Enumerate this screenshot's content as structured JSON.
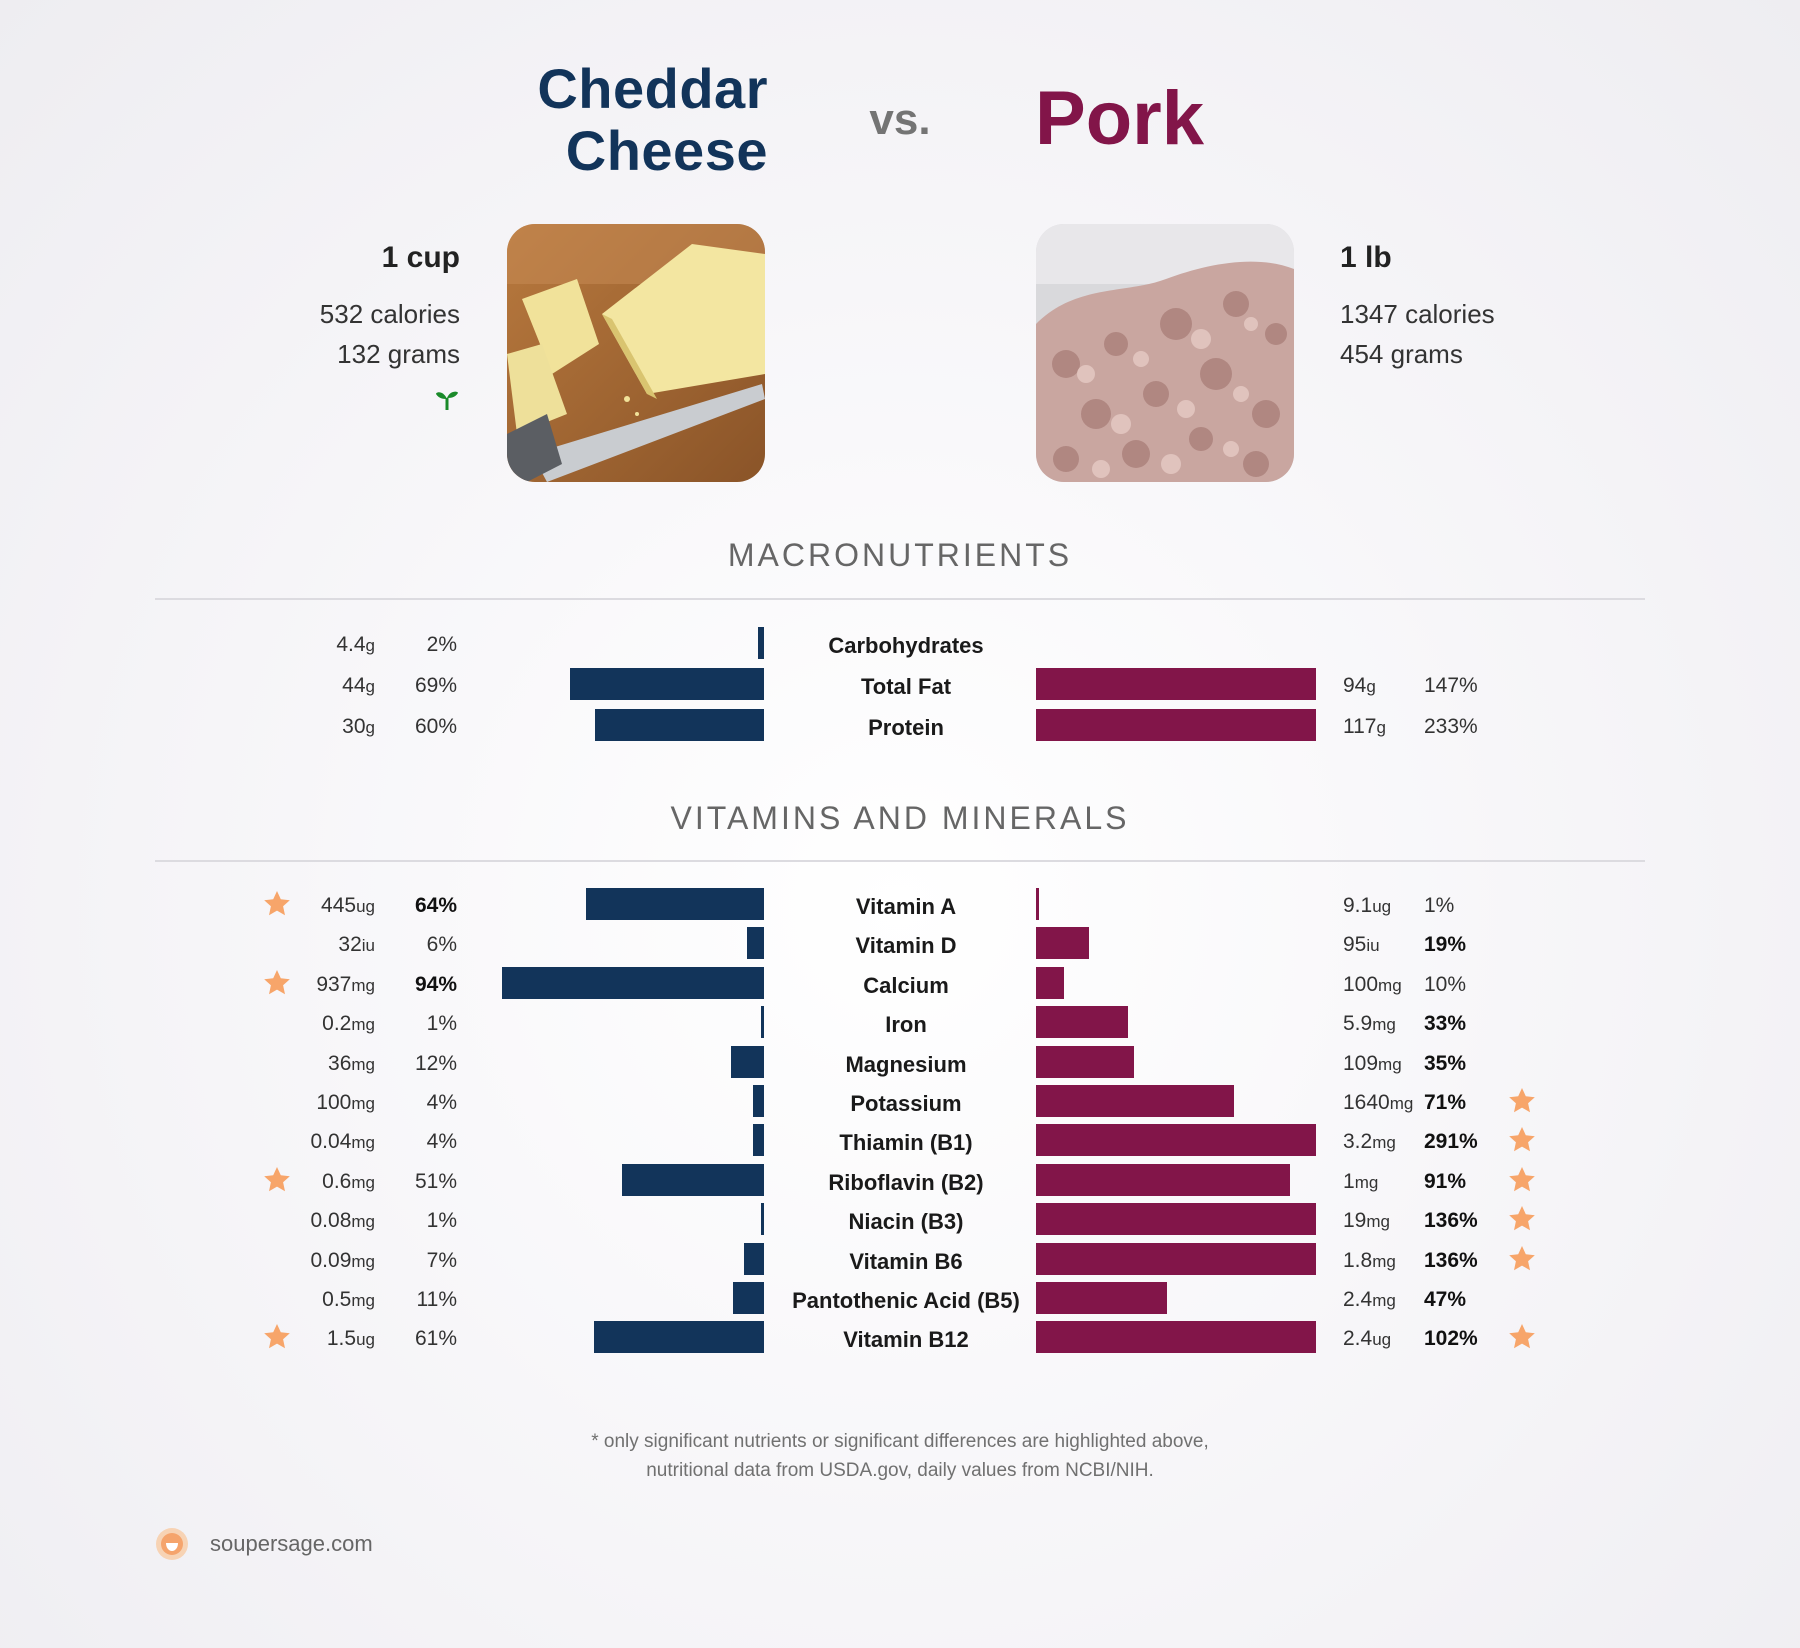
{
  "header": {
    "left_title_line1": "Cheddar",
    "left_title_line2": "Cheese",
    "vs": "vs.",
    "right_title": "Pork"
  },
  "left_food": {
    "serving": "1 cup",
    "calories": "532 calories",
    "grams": "132 grams",
    "badge_icon": "sprout-icon"
  },
  "right_food": {
    "serving": "1 lb",
    "calories": "1347 calories",
    "grams": "454 grams"
  },
  "sections": {
    "macros": "MACRONUTRIENTS",
    "vitamins": "VITAMINS AND MINERALS"
  },
  "colors": {
    "left": "#12345a",
    "right": "#821549",
    "star": "#f7a56a"
  },
  "chart_data": [
    {
      "type": "bar",
      "title": "MACRONUTRIENTS",
      "series": [
        {
          "name": "Cheddar Cheese"
        },
        {
          "name": "Pork"
        }
      ],
      "rows": [
        {
          "name": "Carbohydrates",
          "left_val": "4.4",
          "left_unit": "g",
          "left_pct": "2%",
          "left_pct_num": 2,
          "right_val": "",
          "right_unit": "",
          "right_pct": "",
          "right_pct_num": 0
        },
        {
          "name": "Total Fat",
          "left_val": "44",
          "left_unit": "g",
          "left_pct": "69%",
          "left_pct_num": 69,
          "right_val": "94",
          "right_unit": "g",
          "right_pct": "147%",
          "right_pct_num": 147
        },
        {
          "name": "Protein",
          "left_val": "30",
          "left_unit": "g",
          "left_pct": "60%",
          "left_pct_num": 60,
          "right_val": "117",
          "right_unit": "g",
          "right_pct": "233%",
          "right_pct_num": 233
        }
      ]
    },
    {
      "type": "bar",
      "title": "VITAMINS AND MINERALS",
      "series": [
        {
          "name": "Cheddar Cheese"
        },
        {
          "name": "Pork"
        }
      ],
      "rows": [
        {
          "name": "Vitamin A",
          "left_val": "445",
          "left_unit": "ug",
          "left_pct": "64%",
          "left_pct_num": 64,
          "left_bold": true,
          "left_star": true,
          "right_val": "9.1",
          "right_unit": "ug",
          "right_pct": "1%",
          "right_pct_num": 1,
          "right_bold": false,
          "right_star": false
        },
        {
          "name": "Vitamin D",
          "left_val": "32",
          "left_unit": "iu",
          "left_pct": "6%",
          "left_pct_num": 6,
          "left_bold": false,
          "left_star": false,
          "right_val": "95",
          "right_unit": "iu",
          "right_pct": "19%",
          "right_pct_num": 19,
          "right_bold": true,
          "right_star": false
        },
        {
          "name": "Calcium",
          "left_val": "937",
          "left_unit": "mg",
          "left_pct": "94%",
          "left_pct_num": 94,
          "left_bold": true,
          "left_star": true,
          "right_val": "100",
          "right_unit": "mg",
          "right_pct": "10%",
          "right_pct_num": 10,
          "right_bold": false,
          "right_star": false
        },
        {
          "name": "Iron",
          "left_val": "0.2",
          "left_unit": "mg",
          "left_pct": "1%",
          "left_pct_num": 1,
          "left_bold": false,
          "left_star": false,
          "right_val": "5.9",
          "right_unit": "mg",
          "right_pct": "33%",
          "right_pct_num": 33,
          "right_bold": true,
          "right_star": false
        },
        {
          "name": "Magnesium",
          "left_val": "36",
          "left_unit": "mg",
          "left_pct": "12%",
          "left_pct_num": 12,
          "left_bold": false,
          "left_star": false,
          "right_val": "109",
          "right_unit": "mg",
          "right_pct": "35%",
          "right_pct_num": 35,
          "right_bold": true,
          "right_star": false
        },
        {
          "name": "Potassium",
          "left_val": "100",
          "left_unit": "mg",
          "left_pct": "4%",
          "left_pct_num": 4,
          "left_bold": false,
          "left_star": false,
          "right_val": "1640",
          "right_unit": "mg",
          "right_pct": "71%",
          "right_pct_num": 71,
          "right_bold": true,
          "right_star": true
        },
        {
          "name": "Thiamin (B1)",
          "left_val": "0.04",
          "left_unit": "mg",
          "left_pct": "4%",
          "left_pct_num": 4,
          "left_bold": false,
          "left_star": false,
          "right_val": "3.2",
          "right_unit": "mg",
          "right_pct": "291%",
          "right_pct_num": 291,
          "right_bold": true,
          "right_star": true
        },
        {
          "name": "Riboflavin (B2)",
          "left_val": "0.6",
          "left_unit": "mg",
          "left_pct": "51%",
          "left_pct_num": 51,
          "left_bold": false,
          "left_star": true,
          "right_val": "1",
          "right_unit": "mg",
          "right_pct": "91%",
          "right_pct_num": 91,
          "right_bold": true,
          "right_star": true
        },
        {
          "name": "Niacin (B3)",
          "left_val": "0.08",
          "left_unit": "mg",
          "left_pct": "1%",
          "left_pct_num": 1,
          "left_bold": false,
          "left_star": false,
          "right_val": "19",
          "right_unit": "mg",
          "right_pct": "136%",
          "right_pct_num": 136,
          "right_bold": true,
          "right_star": true
        },
        {
          "name": "Vitamin B6",
          "left_val": "0.09",
          "left_unit": "mg",
          "left_pct": "7%",
          "left_pct_num": 7,
          "left_bold": false,
          "left_star": false,
          "right_val": "1.8",
          "right_unit": "mg",
          "right_pct": "136%",
          "right_pct_num": 136,
          "right_bold": true,
          "right_star": true
        },
        {
          "name": "Pantothenic Acid (B5)",
          "left_val": "0.5",
          "left_unit": "mg",
          "left_pct": "11%",
          "left_pct_num": 11,
          "left_bold": false,
          "left_star": false,
          "right_val": "2.4",
          "right_unit": "mg",
          "right_pct": "47%",
          "right_pct_num": 47,
          "right_bold": true,
          "right_star": false
        },
        {
          "name": "Vitamin B12",
          "left_val": "1.5",
          "left_unit": "ug",
          "left_pct": "61%",
          "left_pct_num": 61,
          "left_bold": false,
          "left_star": true,
          "right_val": "2.4",
          "right_unit": "ug",
          "right_pct": "102%",
          "right_pct_num": 102,
          "right_bold": true,
          "right_star": true
        }
      ]
    }
  ],
  "footnote": {
    "line1": "* only significant nutrients or significant differences are highlighted above,",
    "line2": "nutritional data from USDA.gov, daily values from NCBI/NIH."
  },
  "brand": {
    "name": "soupersage.com",
    "icon": "soupersage-logo-icon"
  }
}
